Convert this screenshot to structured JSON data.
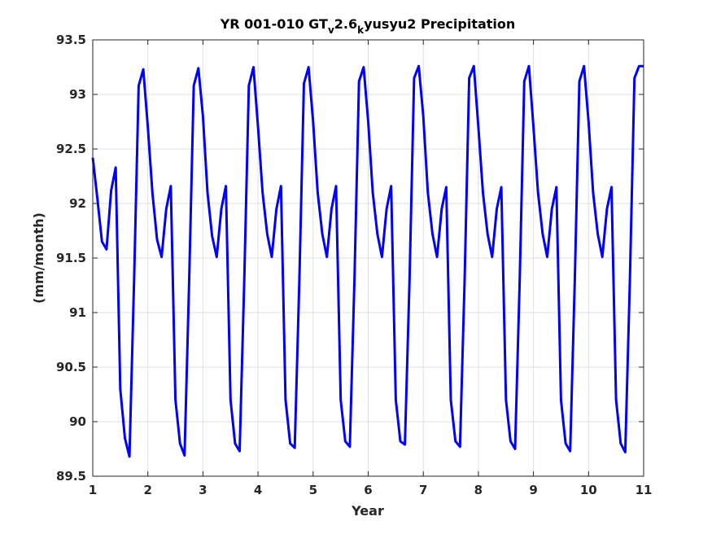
{
  "chart_data": {
    "type": "line",
    "title": {
      "prefix": "YR 001-010 GT",
      "sub1": "v",
      "mid": "2.6",
      "sub2": "k",
      "suffix": "yusyu2 Precipitation"
    },
    "xlabel": "Year",
    "ylabel": "(mm/month)",
    "xlim": [
      1,
      11
    ],
    "ylim": [
      89.5,
      93.5
    ],
    "xticks": [
      1,
      2,
      3,
      4,
      5,
      6,
      7,
      8,
      9,
      10,
      11
    ],
    "yticks": [
      89.5,
      90,
      90.5,
      91,
      91.5,
      92,
      92.5,
      93,
      93.5
    ],
    "ytick_labels": [
      "89.5",
      "90",
      "90.5",
      "91",
      "91.5",
      "92",
      "92.5",
      "93",
      "93.5"
    ],
    "grid": true,
    "line_color": "#0000ff",
    "series": [
      {
        "x": [
          1.0,
          1.0833,
          1.1667,
          1.25,
          1.3333,
          1.4167,
          1.5,
          1.5833,
          1.6667,
          1.75,
          1.8333,
          1.9167,
          2.0,
          2.0833,
          2.1667,
          2.25,
          2.3333,
          2.4167,
          2.5,
          2.5833,
          2.6667,
          2.75,
          2.8333,
          2.9167,
          3.0,
          3.0833,
          3.1667,
          3.25,
          3.3333,
          3.4167,
          3.5,
          3.5833,
          3.6667,
          3.75,
          3.8333,
          3.9167,
          4.0,
          4.0833,
          4.1667,
          4.25,
          4.3333,
          4.4167,
          4.5,
          4.5833,
          4.6667,
          4.75,
          4.8333,
          4.9167,
          5.0,
          5.0833,
          5.1667,
          5.25,
          5.3333,
          5.4167,
          5.5,
          5.5833,
          5.6667,
          5.75,
          5.8333,
          5.9167,
          6.0,
          6.0833,
          6.1667,
          6.25,
          6.3333,
          6.4167,
          6.5,
          6.5833,
          6.6667,
          6.75,
          6.8333,
          6.9167,
          7.0,
          7.0833,
          7.1667,
          7.25,
          7.3333,
          7.4167,
          7.5,
          7.5833,
          7.6667,
          7.75,
          7.8333,
          7.9167,
          8.0,
          8.0833,
          8.1667,
          8.25,
          8.3333,
          8.4167,
          8.5,
          8.5833,
          8.6667,
          8.75,
          8.8333,
          8.9167,
          9.0,
          9.0833,
          9.1667,
          9.25,
          9.3333,
          9.4167,
          9.5,
          9.5833,
          9.6667,
          9.75,
          9.8333,
          9.9167,
          10.0,
          10.0833,
          10.1667,
          10.25,
          10.3333,
          10.4167,
          10.5,
          10.5833,
          10.6667,
          10.75,
          10.8333,
          10.9167,
          11.0
        ],
        "y": [
          92.42,
          92.05,
          91.65,
          91.58,
          92.12,
          92.33,
          90.3,
          89.85,
          89.68,
          91.3,
          93.08,
          93.23,
          92.7,
          92.1,
          91.67,
          91.51,
          91.95,
          92.16,
          90.2,
          89.8,
          89.69,
          91.3,
          93.08,
          93.24,
          92.8,
          92.1,
          91.7,
          91.51,
          91.95,
          92.16,
          90.2,
          89.8,
          89.73,
          91.3,
          93.08,
          93.25,
          92.7,
          92.1,
          91.72,
          91.51,
          91.95,
          92.16,
          90.2,
          89.8,
          89.76,
          91.3,
          93.1,
          93.25,
          92.75,
          92.1,
          91.72,
          91.51,
          91.95,
          92.16,
          90.2,
          89.82,
          89.77,
          91.3,
          93.12,
          93.25,
          92.75,
          92.1,
          91.72,
          91.51,
          91.95,
          92.16,
          90.2,
          89.82,
          89.79,
          91.3,
          93.15,
          93.26,
          92.8,
          92.1,
          91.72,
          91.51,
          91.95,
          92.15,
          90.2,
          89.82,
          89.77,
          91.3,
          93.15,
          93.26,
          92.7,
          92.1,
          91.72,
          91.51,
          91.95,
          92.15,
          90.2,
          89.82,
          89.75,
          91.3,
          93.12,
          93.26,
          92.7,
          92.1,
          91.72,
          91.51,
          91.95,
          92.15,
          90.2,
          89.8,
          89.73,
          91.3,
          93.12,
          93.26,
          92.75,
          92.1,
          91.72,
          91.51,
          91.95,
          92.15,
          90.2,
          89.8,
          89.72,
          91.3,
          93.15,
          93.26,
          93.26
        ]
      }
    ]
  }
}
